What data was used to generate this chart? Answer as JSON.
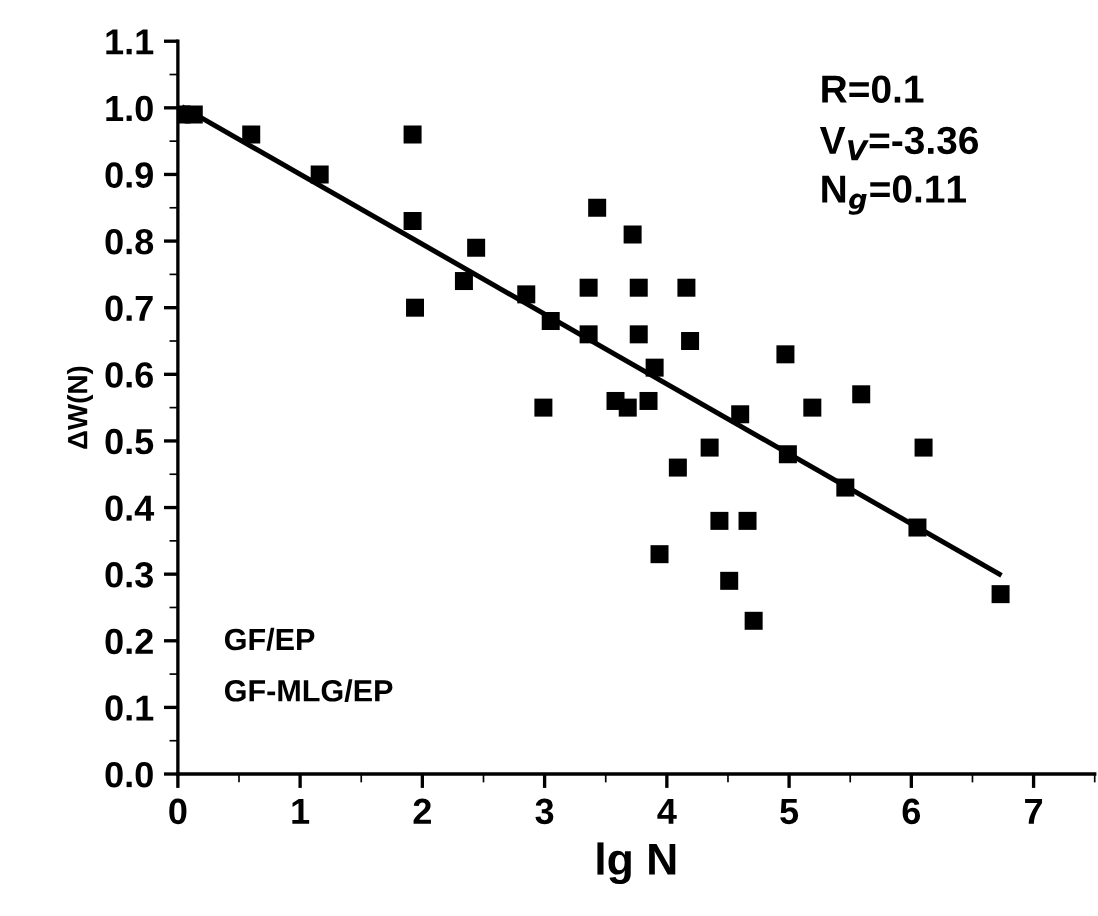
{
  "chart_data": {
    "type": "scatter",
    "xlabel": "lg N",
    "ylabel": "ΔW(N)",
    "series": [
      {
        "color": "#000000",
        "marker": "square",
        "x": [
          0.03,
          0.13,
          0.6,
          1.16,
          1.92,
          1.92,
          1.94,
          2.34,
          2.44,
          2.85,
          2.99,
          3.05,
          3.36,
          3.36,
          3.43,
          3.58,
          3.68,
          3.72,
          3.77,
          3.77,
          3.85,
          3.9,
          3.94,
          4.09,
          4.16,
          4.19,
          4.35,
          4.43,
          4.51,
          4.6,
          4.66,
          4.71,
          4.97,
          4.99,
          5.19,
          5.46,
          5.59,
          6.05,
          6.1,
          6.73
        ],
        "values": [
          0.99,
          0.99,
          0.96,
          0.9,
          0.96,
          0.83,
          0.7,
          0.74,
          0.79,
          0.72,
          0.55,
          0.68,
          0.73,
          0.66,
          0.85,
          0.56,
          0.55,
          0.81,
          0.73,
          0.66,
          0.56,
          0.61,
          0.33,
          0.46,
          0.73,
          0.65,
          0.49,
          0.38,
          0.29,
          0.54,
          0.38,
          0.23,
          0.63,
          0.48,
          0.55,
          0.43,
          0.57,
          0.37,
          0.49,
          0.27
        ]
      },
      {
        "type": "line",
        "color": "#000000",
        "marker": "none",
        "line_style": "solid",
        "x": [
          0.05,
          6.72
        ],
        "values": [
          1.0,
          0.3
        ]
      }
    ],
    "xlim": [
      0,
      7.5
    ],
    "ylim": [
      0,
      1.1
    ],
    "xticks": [
      0,
      1,
      2,
      3,
      4,
      5,
      6,
      7
    ],
    "yticks": [
      {
        "value": 0,
        "label": "0.0"
      },
      {
        "value": 0.1,
        "label": "0.1"
      },
      {
        "value": 0.2,
        "label": "0.2"
      },
      {
        "value": 0.3,
        "label": "0.3"
      },
      {
        "value": 0.4,
        "label": "0.4"
      },
      {
        "value": 0.5,
        "label": "0.5"
      },
      {
        "value": 0.6,
        "label": "0.6"
      },
      {
        "value": 0.7,
        "label": "0.7"
      },
      {
        "value": 0.8,
        "label": "0.8"
      },
      {
        "value": 0.9,
        "label": "0.9"
      },
      {
        "value": 1.0,
        "label": "1.0"
      },
      {
        "value": 1.1,
        "label": "1.1"
      }
    ],
    "grid": false,
    "legend": false,
    "annotations": [
      "R=0.1",
      "V$_{V}$=-3.36",
      "N$_{g}$=0.11",
      "GF/EP",
      "GF-MLG/EP"
    ]
  }
}
